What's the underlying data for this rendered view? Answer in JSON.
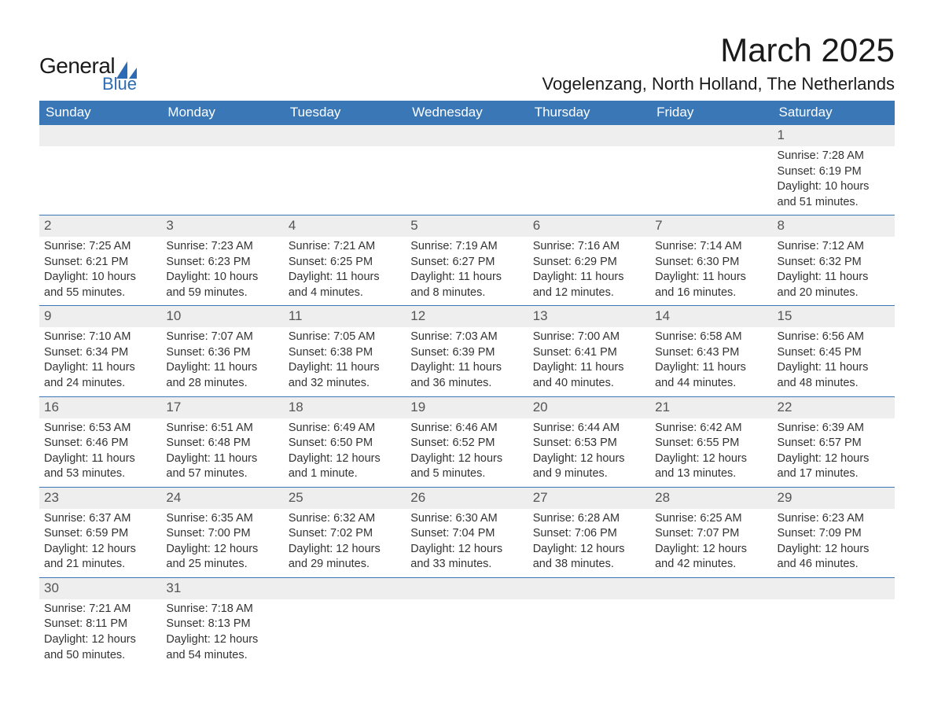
{
  "logo": {
    "general": "General",
    "blue": "Blue",
    "sail_color": "#2d6bb5"
  },
  "title": "March 2025",
  "location": "Vogelenzang, North Holland, The Netherlands",
  "colors": {
    "header_bg": "#3a77b7",
    "header_text": "#ffffff",
    "daynum_bg": "#eeeeee",
    "border": "#3a77b7",
    "text": "#333333",
    "background": "#ffffff"
  },
  "day_headers": [
    "Sunday",
    "Monday",
    "Tuesday",
    "Wednesday",
    "Thursday",
    "Friday",
    "Saturday"
  ],
  "weeks": [
    [
      null,
      null,
      null,
      null,
      null,
      null,
      {
        "n": "1",
        "sunrise": "Sunrise: 7:28 AM",
        "sunset": "Sunset: 6:19 PM",
        "d1": "Daylight: 10 hours",
        "d2": "and 51 minutes."
      }
    ],
    [
      {
        "n": "2",
        "sunrise": "Sunrise: 7:25 AM",
        "sunset": "Sunset: 6:21 PM",
        "d1": "Daylight: 10 hours",
        "d2": "and 55 minutes."
      },
      {
        "n": "3",
        "sunrise": "Sunrise: 7:23 AM",
        "sunset": "Sunset: 6:23 PM",
        "d1": "Daylight: 10 hours",
        "d2": "and 59 minutes."
      },
      {
        "n": "4",
        "sunrise": "Sunrise: 7:21 AM",
        "sunset": "Sunset: 6:25 PM",
        "d1": "Daylight: 11 hours",
        "d2": "and 4 minutes."
      },
      {
        "n": "5",
        "sunrise": "Sunrise: 7:19 AM",
        "sunset": "Sunset: 6:27 PM",
        "d1": "Daylight: 11 hours",
        "d2": "and 8 minutes."
      },
      {
        "n": "6",
        "sunrise": "Sunrise: 7:16 AM",
        "sunset": "Sunset: 6:29 PM",
        "d1": "Daylight: 11 hours",
        "d2": "and 12 minutes."
      },
      {
        "n": "7",
        "sunrise": "Sunrise: 7:14 AM",
        "sunset": "Sunset: 6:30 PM",
        "d1": "Daylight: 11 hours",
        "d2": "and 16 minutes."
      },
      {
        "n": "8",
        "sunrise": "Sunrise: 7:12 AM",
        "sunset": "Sunset: 6:32 PM",
        "d1": "Daylight: 11 hours",
        "d2": "and 20 minutes."
      }
    ],
    [
      {
        "n": "9",
        "sunrise": "Sunrise: 7:10 AM",
        "sunset": "Sunset: 6:34 PM",
        "d1": "Daylight: 11 hours",
        "d2": "and 24 minutes."
      },
      {
        "n": "10",
        "sunrise": "Sunrise: 7:07 AM",
        "sunset": "Sunset: 6:36 PM",
        "d1": "Daylight: 11 hours",
        "d2": "and 28 minutes."
      },
      {
        "n": "11",
        "sunrise": "Sunrise: 7:05 AM",
        "sunset": "Sunset: 6:38 PM",
        "d1": "Daylight: 11 hours",
        "d2": "and 32 minutes."
      },
      {
        "n": "12",
        "sunrise": "Sunrise: 7:03 AM",
        "sunset": "Sunset: 6:39 PM",
        "d1": "Daylight: 11 hours",
        "d2": "and 36 minutes."
      },
      {
        "n": "13",
        "sunrise": "Sunrise: 7:00 AM",
        "sunset": "Sunset: 6:41 PM",
        "d1": "Daylight: 11 hours",
        "d2": "and 40 minutes."
      },
      {
        "n": "14",
        "sunrise": "Sunrise: 6:58 AM",
        "sunset": "Sunset: 6:43 PM",
        "d1": "Daylight: 11 hours",
        "d2": "and 44 minutes."
      },
      {
        "n": "15",
        "sunrise": "Sunrise: 6:56 AM",
        "sunset": "Sunset: 6:45 PM",
        "d1": "Daylight: 11 hours",
        "d2": "and 48 minutes."
      }
    ],
    [
      {
        "n": "16",
        "sunrise": "Sunrise: 6:53 AM",
        "sunset": "Sunset: 6:46 PM",
        "d1": "Daylight: 11 hours",
        "d2": "and 53 minutes."
      },
      {
        "n": "17",
        "sunrise": "Sunrise: 6:51 AM",
        "sunset": "Sunset: 6:48 PM",
        "d1": "Daylight: 11 hours",
        "d2": "and 57 minutes."
      },
      {
        "n": "18",
        "sunrise": "Sunrise: 6:49 AM",
        "sunset": "Sunset: 6:50 PM",
        "d1": "Daylight: 12 hours",
        "d2": "and 1 minute."
      },
      {
        "n": "19",
        "sunrise": "Sunrise: 6:46 AM",
        "sunset": "Sunset: 6:52 PM",
        "d1": "Daylight: 12 hours",
        "d2": "and 5 minutes."
      },
      {
        "n": "20",
        "sunrise": "Sunrise: 6:44 AM",
        "sunset": "Sunset: 6:53 PM",
        "d1": "Daylight: 12 hours",
        "d2": "and 9 minutes."
      },
      {
        "n": "21",
        "sunrise": "Sunrise: 6:42 AM",
        "sunset": "Sunset: 6:55 PM",
        "d1": "Daylight: 12 hours",
        "d2": "and 13 minutes."
      },
      {
        "n": "22",
        "sunrise": "Sunrise: 6:39 AM",
        "sunset": "Sunset: 6:57 PM",
        "d1": "Daylight: 12 hours",
        "d2": "and 17 minutes."
      }
    ],
    [
      {
        "n": "23",
        "sunrise": "Sunrise: 6:37 AM",
        "sunset": "Sunset: 6:59 PM",
        "d1": "Daylight: 12 hours",
        "d2": "and 21 minutes."
      },
      {
        "n": "24",
        "sunrise": "Sunrise: 6:35 AM",
        "sunset": "Sunset: 7:00 PM",
        "d1": "Daylight: 12 hours",
        "d2": "and 25 minutes."
      },
      {
        "n": "25",
        "sunrise": "Sunrise: 6:32 AM",
        "sunset": "Sunset: 7:02 PM",
        "d1": "Daylight: 12 hours",
        "d2": "and 29 minutes."
      },
      {
        "n": "26",
        "sunrise": "Sunrise: 6:30 AM",
        "sunset": "Sunset: 7:04 PM",
        "d1": "Daylight: 12 hours",
        "d2": "and 33 minutes."
      },
      {
        "n": "27",
        "sunrise": "Sunrise: 6:28 AM",
        "sunset": "Sunset: 7:06 PM",
        "d1": "Daylight: 12 hours",
        "d2": "and 38 minutes."
      },
      {
        "n": "28",
        "sunrise": "Sunrise: 6:25 AM",
        "sunset": "Sunset: 7:07 PM",
        "d1": "Daylight: 12 hours",
        "d2": "and 42 minutes."
      },
      {
        "n": "29",
        "sunrise": "Sunrise: 6:23 AM",
        "sunset": "Sunset: 7:09 PM",
        "d1": "Daylight: 12 hours",
        "d2": "and 46 minutes."
      }
    ],
    [
      {
        "n": "30",
        "sunrise": "Sunrise: 7:21 AM",
        "sunset": "Sunset: 8:11 PM",
        "d1": "Daylight: 12 hours",
        "d2": "and 50 minutes."
      },
      {
        "n": "31",
        "sunrise": "Sunrise: 7:18 AM",
        "sunset": "Sunset: 8:13 PM",
        "d1": "Daylight: 12 hours",
        "d2": "and 54 minutes."
      },
      null,
      null,
      null,
      null,
      null
    ]
  ]
}
